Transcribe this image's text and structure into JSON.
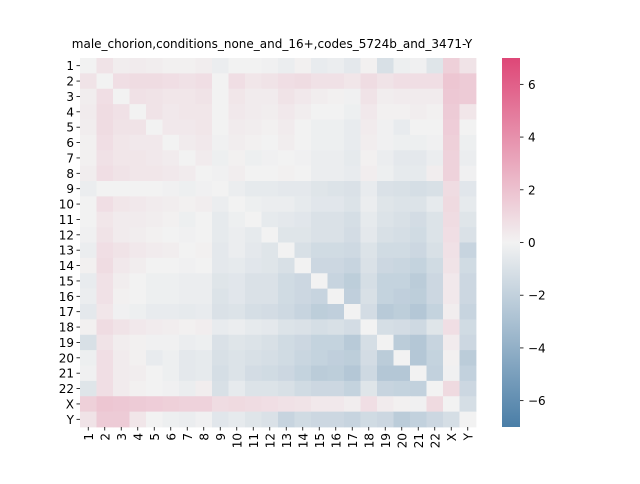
{
  "chart_data": {
    "type": "heatmap",
    "title": "male_chorion,conditions_none_and_16+,codes_5724b_and_3471-Y",
    "labels": [
      "1",
      "2",
      "3",
      "4",
      "5",
      "6",
      "7",
      "8",
      "9",
      "10",
      "11",
      "12",
      "13",
      "14",
      "15",
      "16",
      "17",
      "18",
      "19",
      "20",
      "21",
      "22",
      "X",
      "Y"
    ],
    "colorbar": {
      "min": -7,
      "max": 7,
      "ticks": [
        -6,
        -4,
        -2,
        0,
        2,
        4,
        6
      ],
      "low_color": "#4a7ea7",
      "mid_color": "#f2f2f2",
      "high_color": "#de4777"
    },
    "matrix": [
      [
        0.0,
        0.6,
        0.2,
        0.3,
        0.2,
        0.1,
        0.1,
        0.2,
        -0.3,
        0.0,
        0.0,
        -0.1,
        -0.3,
        0.1,
        -0.4,
        -0.3,
        -0.6,
        0.1,
        -1.1,
        -0.2,
        -0.1,
        -0.8,
        1.4,
        0.6
      ],
      [
        0.6,
        0.0,
        0.8,
        0.9,
        0.9,
        0.8,
        0.7,
        0.8,
        0.0,
        0.8,
        0.5,
        0.6,
        0.8,
        0.9,
        0.7,
        0.7,
        0.5,
        0.9,
        0.6,
        0.8,
        0.8,
        0.8,
        1.8,
        1.6
      ],
      [
        0.2,
        0.8,
        0.0,
        0.7,
        0.6,
        0.5,
        0.5,
        0.6,
        0.0,
        0.5,
        0.3,
        0.3,
        0.6,
        0.4,
        0.2,
        0.1,
        -0.1,
        0.6,
        0.2,
        0.3,
        0.3,
        0.3,
        1.7,
        1.6
      ],
      [
        0.3,
        0.9,
        0.7,
        0.0,
        0.6,
        0.4,
        0.5,
        0.5,
        0.0,
        0.4,
        0.3,
        0.2,
        0.4,
        0.2,
        0.0,
        0.0,
        -0.2,
        0.4,
        0.1,
        0.1,
        0.2,
        0.1,
        1.6,
        0.5
      ],
      [
        0.2,
        0.9,
        0.6,
        0.6,
        0.0,
        0.4,
        0.4,
        0.5,
        0.0,
        0.3,
        0.2,
        0.1,
        0.3,
        0.0,
        -0.2,
        -0.2,
        -0.4,
        0.3,
        -0.1,
        -0.4,
        0.0,
        0.0,
        1.5,
        0.0
      ],
      [
        0.1,
        0.8,
        0.5,
        0.4,
        0.4,
        0.0,
        0.3,
        0.4,
        -0.1,
        0.2,
        0.1,
        0.0,
        0.2,
        0.0,
        -0.2,
        -0.2,
        -0.4,
        0.2,
        -0.1,
        -0.2,
        -0.2,
        -0.1,
        1.4,
        -0.2
      ],
      [
        0.1,
        0.7,
        0.5,
        0.5,
        0.4,
        0.3,
        0.0,
        0.3,
        -0.2,
        0.1,
        -0.2,
        -0.1,
        0.0,
        -0.1,
        -0.3,
        -0.3,
        -0.5,
        0.1,
        -0.3,
        -0.6,
        -0.6,
        -0.3,
        1.3,
        -0.3
      ],
      [
        0.2,
        0.8,
        0.6,
        0.5,
        0.5,
        0.4,
        0.3,
        0.0,
        -0.1,
        0.2,
        0.0,
        0.0,
        0.1,
        0.0,
        -0.3,
        -0.3,
        -0.4,
        0.2,
        -0.2,
        -0.5,
        -0.5,
        0.2,
        1.3,
        -0.1
      ],
      [
        -0.3,
        0.0,
        0.0,
        0.0,
        0.0,
        -0.1,
        -0.2,
        -0.1,
        0.0,
        -0.3,
        -0.5,
        -0.5,
        -0.6,
        -0.6,
        -0.8,
        -0.9,
        -1.0,
        -0.4,
        -1.0,
        -1.1,
        -1.2,
        -1.1,
        0.9,
        -0.7
      ],
      [
        0.0,
        0.8,
        0.5,
        0.4,
        0.3,
        0.2,
        0.1,
        0.2,
        -0.3,
        0.0,
        -0.2,
        -0.3,
        -0.3,
        -0.5,
        -0.7,
        -0.7,
        -0.9,
        -0.3,
        -0.8,
        -0.9,
        -0.9,
        -0.5,
        1.0,
        -0.5
      ],
      [
        0.0,
        0.5,
        0.3,
        0.3,
        0.2,
        0.1,
        -0.2,
        0.0,
        -0.5,
        -0.2,
        0.0,
        -0.5,
        -0.6,
        -0.7,
        -1.0,
        -1.0,
        -1.2,
        -0.5,
        -0.9,
        -1.1,
        -1.3,
        -0.9,
        0.9,
        -0.8
      ],
      [
        -0.1,
        0.6,
        0.3,
        0.2,
        0.1,
        0.0,
        -0.1,
        0.0,
        -0.5,
        -0.3,
        -0.5,
        0.0,
        -0.8,
        -0.8,
        -1.0,
        -1.0,
        -1.3,
        -0.6,
        -1.1,
        -1.2,
        -1.4,
        -0.9,
        0.8,
        -1.0
      ],
      [
        -0.3,
        0.8,
        0.6,
        0.4,
        0.3,
        0.2,
        0.0,
        0.1,
        -0.6,
        -0.3,
        -0.6,
        -0.8,
        0.0,
        -1.1,
        -1.4,
        -1.4,
        -1.5,
        -0.9,
        -1.4,
        -1.4,
        -1.6,
        -1.1,
        0.7,
        -1.8
      ],
      [
        0.1,
        0.9,
        0.4,
        0.2,
        0.0,
        0.0,
        -0.1,
        0.0,
        -0.6,
        -0.5,
        -0.7,
        -0.8,
        -1.1,
        0.0,
        -1.6,
        -1.6,
        -1.8,
        -1.0,
        -1.6,
        -1.7,
        -1.9,
        -1.4,
        0.6,
        -1.4
      ],
      [
        -0.4,
        0.7,
        0.2,
        0.0,
        -0.2,
        -0.2,
        -0.3,
        -0.3,
        -0.8,
        -0.7,
        -1.0,
        -1.0,
        -1.4,
        -1.6,
        0.0,
        -1.8,
        -2.2,
        -1.2,
        -1.9,
        -1.9,
        -2.3,
        -1.6,
        0.4,
        -1.6
      ],
      [
        -0.3,
        0.7,
        0.1,
        0.0,
        -0.2,
        -0.2,
        -0.3,
        -0.3,
        -0.9,
        -0.7,
        -1.0,
        -1.0,
        -1.4,
        -1.6,
        -1.8,
        0.0,
        -2.1,
        -1.1,
        -1.9,
        -2.1,
        -2.2,
        -1.6,
        0.4,
        -1.6
      ],
      [
        -0.6,
        0.5,
        -0.1,
        -0.2,
        -0.4,
        -0.4,
        -0.5,
        -0.4,
        -1.0,
        -0.9,
        -1.2,
        -1.3,
        -1.5,
        -1.8,
        -2.2,
        -2.1,
        0.0,
        -1.3,
        -2.4,
        -2.2,
        -2.6,
        -1.9,
        0.2,
        -1.8
      ],
      [
        0.1,
        0.9,
        0.6,
        0.4,
        0.3,
        0.2,
        0.1,
        0.2,
        -0.4,
        -0.3,
        -0.5,
        -0.6,
        -0.9,
        -1.0,
        -1.2,
        -1.1,
        -1.3,
        0.0,
        -1.2,
        -1.3,
        -1.5,
        -0.8,
        0.8,
        -1.4
      ],
      [
        -1.1,
        0.6,
        0.2,
        0.1,
        -0.1,
        -0.1,
        -0.3,
        -0.2,
        -1.0,
        -0.8,
        -0.9,
        -1.1,
        -1.4,
        -1.6,
        -1.9,
        -1.9,
        -2.4,
        -1.2,
        0.0,
        -2.3,
        -2.6,
        -1.8,
        0.3,
        -1.6
      ],
      [
        -0.2,
        0.8,
        0.3,
        0.1,
        -0.4,
        -0.2,
        -0.6,
        -0.5,
        -1.1,
        -0.9,
        -1.1,
        -1.2,
        -1.4,
        -1.7,
        -1.9,
        -2.1,
        -2.2,
        -1.3,
        -2.3,
        0.0,
        -2.6,
        -1.9,
        0.1,
        -2.3
      ],
      [
        -0.1,
        0.8,
        0.3,
        0.2,
        0.0,
        -0.2,
        -0.6,
        -0.5,
        -1.2,
        -0.9,
        -1.3,
        -1.4,
        -1.6,
        -1.9,
        -2.3,
        -2.2,
        -2.6,
        -1.5,
        -2.6,
        -2.6,
        0.0,
        -2.0,
        -0.1,
        -2.0
      ],
      [
        -0.8,
        0.8,
        0.3,
        0.1,
        0.0,
        -0.1,
        -0.3,
        0.2,
        -1.1,
        -0.5,
        -0.9,
        -0.9,
        -1.1,
        -1.4,
        -1.6,
        -1.6,
        -1.9,
        -0.8,
        -1.8,
        -1.9,
        -2.0,
        0.0,
        1.0,
        -1.6
      ],
      [
        1.4,
        1.8,
        1.7,
        1.6,
        1.5,
        1.4,
        1.3,
        1.3,
        0.9,
        1.0,
        0.9,
        0.8,
        0.7,
        0.6,
        0.4,
        0.4,
        0.2,
        0.8,
        0.3,
        0.1,
        -0.1,
        1.0,
        0.0,
        -1.2
      ],
      [
        0.6,
        1.6,
        1.6,
        0.5,
        0.0,
        -0.2,
        -0.3,
        -0.1,
        -0.7,
        -0.5,
        -0.8,
        -1.0,
        -1.8,
        -1.4,
        -1.6,
        -1.6,
        -1.8,
        -1.4,
        -1.6,
        -2.3,
        -2.0,
        -1.6,
        -1.2,
        0.0
      ]
    ]
  }
}
